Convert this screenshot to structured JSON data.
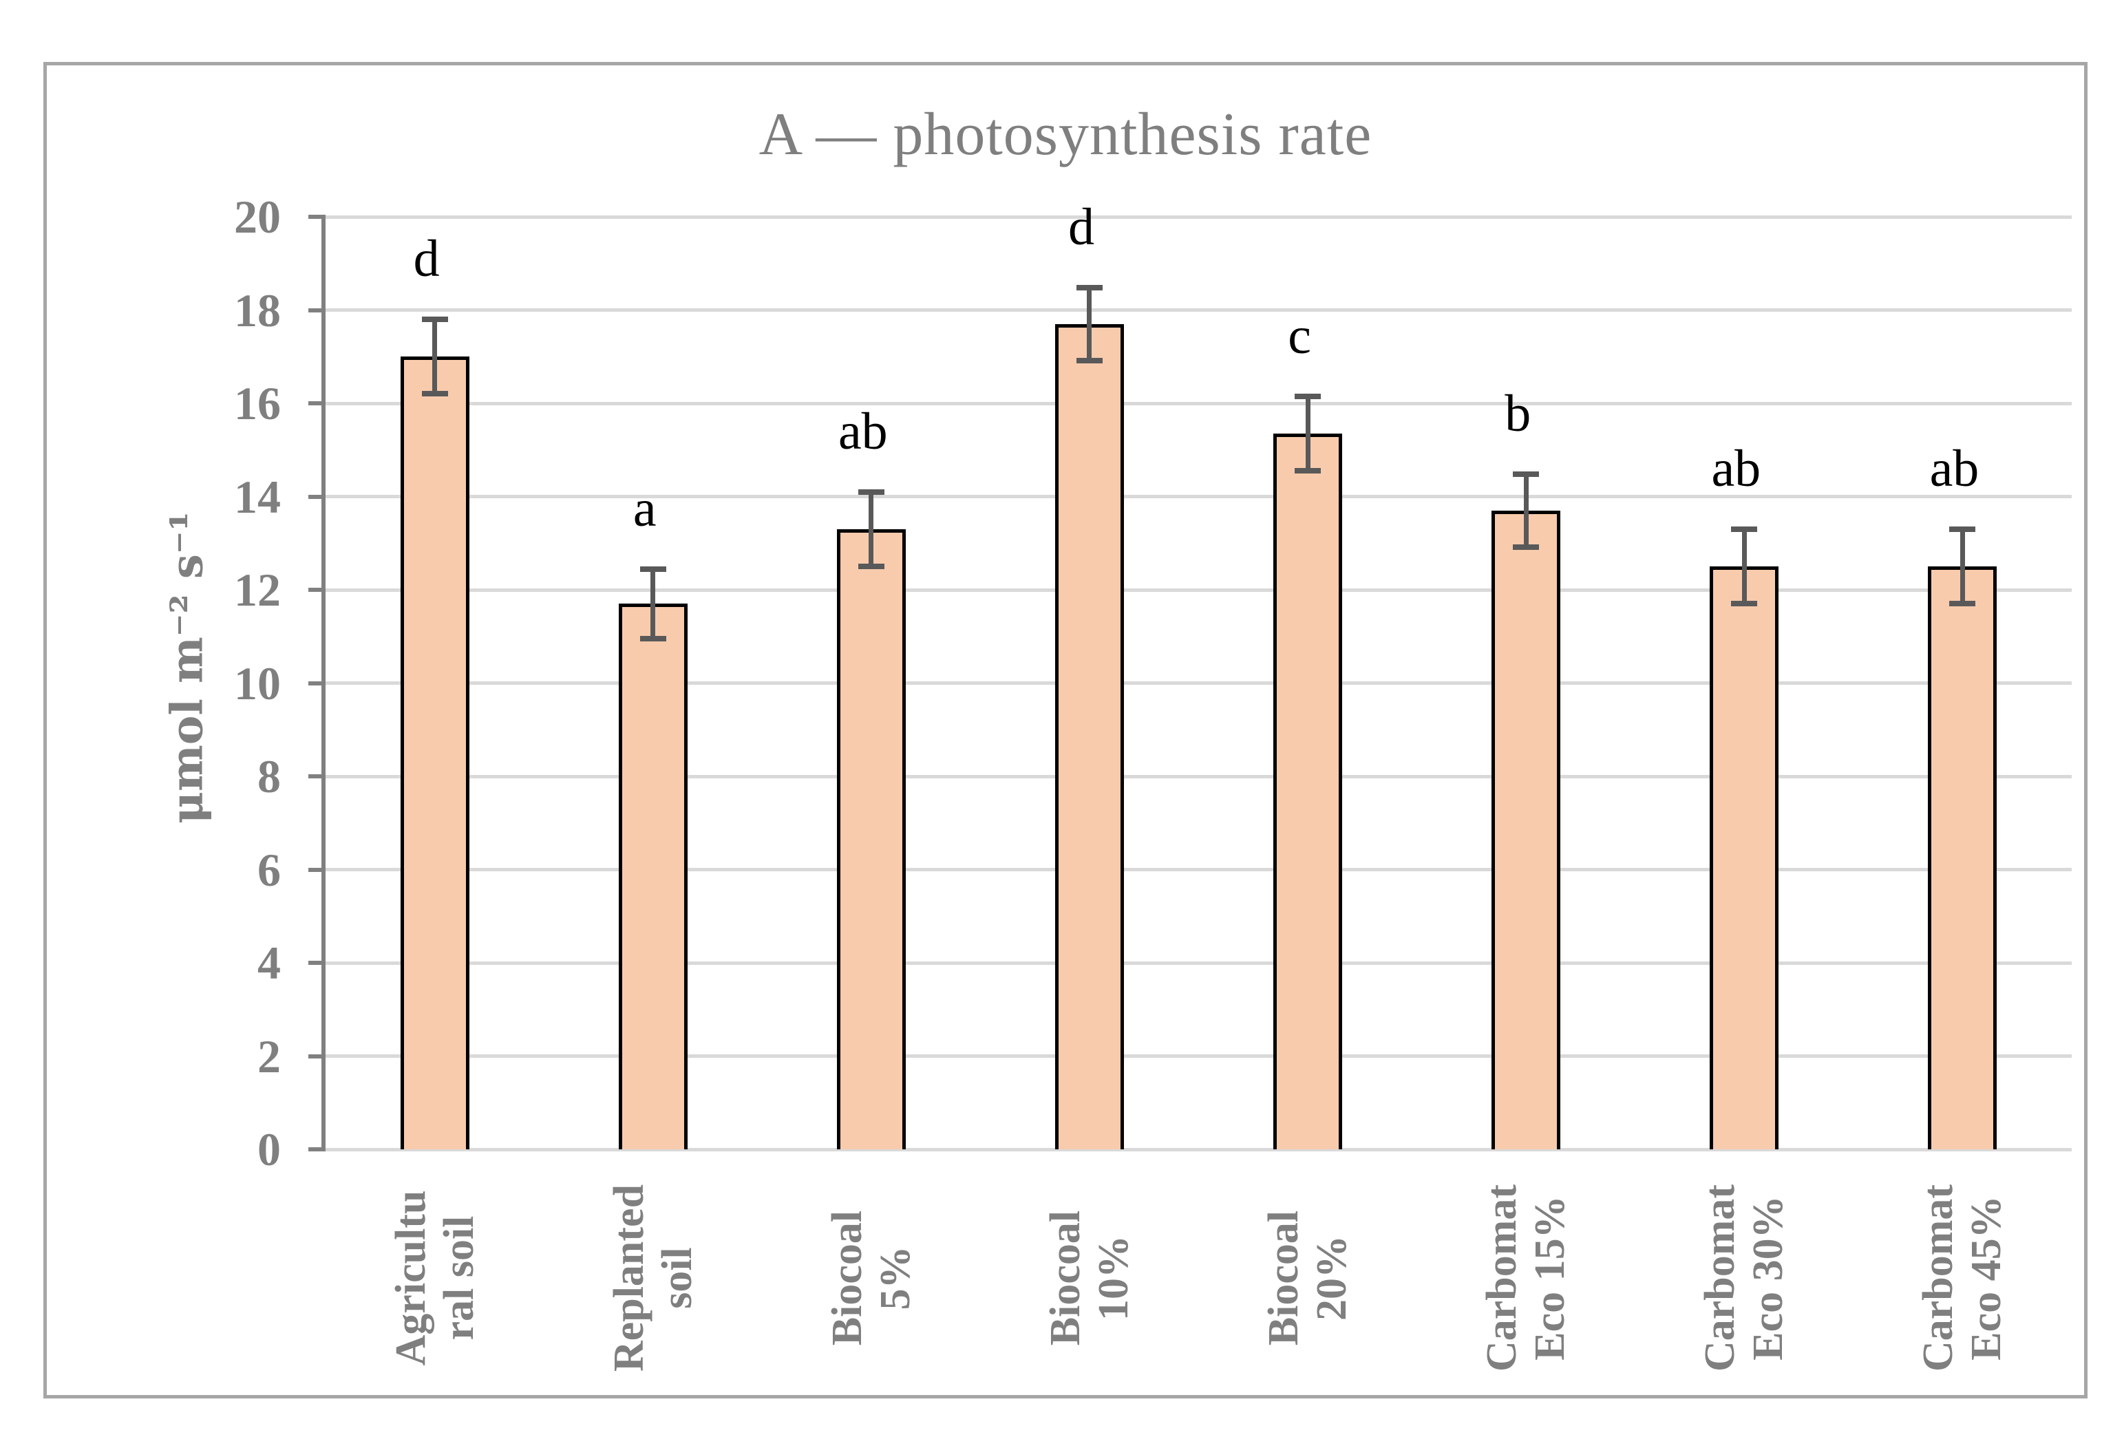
{
  "page": {
    "background": "#FFFFFF"
  },
  "chart_data": {
    "type": "bar",
    "title": "A — photosynthesis rate",
    "ylabel": "μmol m⁻² s⁻¹",
    "xlabel": "",
    "ylim": [
      0,
      20
    ],
    "ytick_step": 2,
    "grid": true,
    "legend": false,
    "categories": [
      "Agricultural soil",
      "Replanted soil",
      "Biocoal 5%",
      "Biocoal 10%",
      "Biocoal 20%",
      "Carbomat Eco 15%",
      "Carbomat Eco 30%",
      "Carbomat Eco 45%"
    ],
    "category_label_lines": [
      [
        "Agricultu",
        "ral soil"
      ],
      [
        "Replanted",
        "soil"
      ],
      [
        "Biocoal",
        "5%"
      ],
      [
        "Biocoal",
        "10%"
      ],
      [
        "Biocoal",
        "20%"
      ],
      [
        "Carbomat",
        "Eco 15%"
      ],
      [
        "Carbomat",
        "Eco 30%"
      ],
      [
        "Carbomat",
        "Eco 45%"
      ]
    ],
    "values": [
      17.0,
      11.7,
      13.3,
      17.7,
      15.35,
      13.7,
      12.5,
      12.5
    ],
    "error_bars": [
      0.8,
      0.75,
      0.8,
      0.78,
      0.8,
      0.78,
      0.8,
      0.8
    ],
    "significance_letters": [
      "d",
      "a",
      "ab",
      "d",
      "c",
      "b",
      "ab",
      "ab"
    ]
  },
  "colors": {
    "bar_fill": "#F8CBAD",
    "bar_border": "#000000",
    "error_bar": "#595959",
    "gridline": "#D9D9D9",
    "axis": "#808080",
    "text_gray": "#7F7F7F",
    "letters": "#000000",
    "frame_border": "#A6A6A6"
  }
}
